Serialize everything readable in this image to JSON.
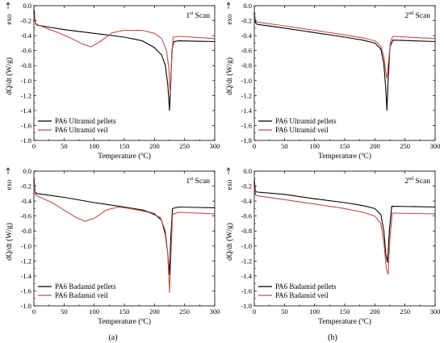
{
  "figure": {
    "labels": [
      "(a)",
      "(b)"
    ]
  },
  "chart_data": [
    {
      "type": "line",
      "panel": "top-left",
      "annotation": {
        "main": "1",
        "sup": "st",
        "rest": " Scan"
      },
      "xlabel": "Temperature (ºC)",
      "ylabel": "dQ/dt (W/g)",
      "exo_label": "exo",
      "xlim": [
        0,
        300
      ],
      "ylim": [
        -1.8,
        0.0
      ],
      "xticks": [
        0,
        50,
        100,
        150,
        200,
        250,
        300
      ],
      "yticks": [
        0.0,
        -0.2,
        -0.4,
        -0.6,
        -0.8,
        -1.0,
        -1.2,
        -1.4,
        -1.6,
        -1.8
      ],
      "legend_position": "bottom-left",
      "grid": false,
      "series": [
        {
          "name": "PA6 Ultramid pellets",
          "color": "#000000",
          "x": [
            0,
            2,
            5,
            20,
            50,
            100,
            150,
            180,
            200,
            212,
            218,
            222,
            225,
            227,
            229,
            232,
            240,
            300
          ],
          "y": [
            -0.05,
            -0.22,
            -0.26,
            -0.28,
            -0.32,
            -0.37,
            -0.42,
            -0.47,
            -0.56,
            -0.66,
            -0.8,
            -1.05,
            -1.4,
            -1.05,
            -0.6,
            -0.48,
            -0.47,
            -0.48
          ]
        },
        {
          "name": "PA6 Ultramid veil",
          "color": "#c0504d",
          "x": [
            0,
            3,
            5,
            20,
            40,
            60,
            80,
            95,
            110,
            130,
            150,
            180,
            200,
            212,
            220,
            224,
            226,
            228,
            231,
            240,
            300
          ],
          "y": [
            -0.1,
            -0.25,
            -0.25,
            -0.3,
            -0.36,
            -0.43,
            -0.51,
            -0.55,
            -0.48,
            -0.36,
            -0.33,
            -0.33,
            -0.37,
            -0.44,
            -0.6,
            -0.85,
            -1.18,
            -0.8,
            -0.42,
            -0.41,
            -0.44
          ]
        }
      ]
    },
    {
      "type": "line",
      "panel": "top-right",
      "annotation": {
        "main": "2",
        "sup": "nd",
        "rest": " Scan"
      },
      "xlabel": "Temperature (ºC)",
      "ylabel": "dQ/dt (W/g)",
      "exo_label": "exo",
      "xlim": [
        0,
        300
      ],
      "ylim": [
        -1.8,
        0.0
      ],
      "xticks": [
        0,
        50,
        100,
        150,
        200,
        250,
        300
      ],
      "yticks": [
        0.0,
        -0.2,
        -0.4,
        -0.6,
        -0.8,
        -1.0,
        -1.2,
        -1.4,
        -1.6,
        -1.8
      ],
      "legend_position": "bottom-left",
      "grid": false,
      "series": [
        {
          "name": "PA6 Ultramid pellets",
          "color": "#000000",
          "x": [
            0,
            2,
            5,
            50,
            100,
            150,
            180,
            200,
            210,
            215,
            218,
            220,
            222,
            225,
            230,
            300
          ],
          "y": [
            -0.1,
            -0.23,
            -0.25,
            -0.3,
            -0.36,
            -0.42,
            -0.46,
            -0.5,
            -0.58,
            -0.78,
            -1.1,
            -1.4,
            -1.0,
            -0.55,
            -0.46,
            -0.48
          ]
        },
        {
          "name": "PA6 Ultramid veil",
          "color": "#c0504d",
          "x": [
            0,
            2,
            5,
            50,
            100,
            150,
            180,
            200,
            210,
            215,
            218,
            220,
            222,
            226,
            230,
            300
          ],
          "y": [
            -0.08,
            -0.2,
            -0.22,
            -0.27,
            -0.33,
            -0.39,
            -0.43,
            -0.47,
            -0.54,
            -0.68,
            -0.88,
            -0.97,
            -0.8,
            -0.48,
            -0.41,
            -0.44
          ]
        }
      ]
    },
    {
      "type": "line",
      "panel": "bottom-left",
      "annotation": {
        "main": "1",
        "sup": "st",
        "rest": " Scan"
      },
      "xlabel": "Temperature (ºC)",
      "ylabel": "dQ/dt (W/g)",
      "exo_label": "exo",
      "xlim": [
        0,
        300
      ],
      "ylim": [
        -1.8,
        0.0
      ],
      "xticks": [
        0,
        50,
        100,
        150,
        200,
        250,
        300
      ],
      "yticks": [
        0.0,
        -0.2,
        -0.4,
        -0.6,
        -0.8,
        -1.0,
        -1.2,
        -1.4,
        -1.6,
        -1.8
      ],
      "legend_position": "bottom-left",
      "grid": false,
      "series": [
        {
          "name": "PA6 Badamid pellets",
          "color": "#000000",
          "x": [
            0,
            2,
            5,
            50,
            100,
            150,
            180,
            200,
            212,
            218,
            222,
            225,
            227,
            230,
            240,
            300
          ],
          "y": [
            -0.1,
            -0.28,
            -0.3,
            -0.35,
            -0.42,
            -0.48,
            -0.52,
            -0.57,
            -0.66,
            -0.85,
            -1.1,
            -1.38,
            -0.9,
            -0.5,
            -0.48,
            -0.49
          ]
        },
        {
          "name": "PA6 Badamid veil",
          "color": "#c0504d",
          "x": [
            0,
            3,
            5,
            30,
            50,
            70,
            85,
            100,
            120,
            140,
            160,
            190,
            210,
            218,
            222,
            225,
            227,
            230,
            240,
            300
          ],
          "y": [
            -0.15,
            -0.32,
            -0.33,
            -0.42,
            -0.52,
            -0.62,
            -0.67,
            -0.63,
            -0.52,
            -0.48,
            -0.5,
            -0.55,
            -0.62,
            -0.8,
            -1.1,
            -1.62,
            -1.2,
            -0.58,
            -0.55,
            -0.57
          ]
        }
      ]
    },
    {
      "type": "line",
      "panel": "bottom-right",
      "annotation": {
        "main": "2",
        "sup": "nd",
        "rest": " Scan"
      },
      "xlabel": "Temperature (ºC)",
      "ylabel": "dQ/dt (W/g)",
      "exo_label": "exo",
      "xlim": [
        0,
        300
      ],
      "ylim": [
        -1.8,
        0.0
      ],
      "xticks": [
        0,
        50,
        100,
        150,
        200,
        250,
        300
      ],
      "yticks": [
        0.0,
        -0.2,
        -0.4,
        -0.6,
        -0.8,
        -1.0,
        -1.2,
        -1.4,
        -1.6,
        -1.8
      ],
      "legend_position": "bottom-left",
      "grid": false,
      "series": [
        {
          "name": "PA6 Badamid pellets",
          "color": "#000000",
          "x": [
            0,
            2,
            5,
            50,
            100,
            150,
            180,
            200,
            210,
            215,
            218,
            221,
            224,
            228,
            300
          ],
          "y": [
            -0.12,
            -0.27,
            -0.28,
            -0.31,
            -0.37,
            -0.42,
            -0.46,
            -0.5,
            -0.58,
            -0.8,
            -1.1,
            -1.22,
            -0.8,
            -0.47,
            -0.48
          ]
        },
        {
          "name": "PA6 Badamid veil",
          "color": "#c0504d",
          "x": [
            0,
            2,
            5,
            50,
            100,
            150,
            180,
            200,
            210,
            215,
            219,
            222,
            225,
            229,
            300
          ],
          "y": [
            -0.15,
            -0.32,
            -0.33,
            -0.38,
            -0.44,
            -0.5,
            -0.55,
            -0.6,
            -0.7,
            -0.95,
            -1.3,
            -1.38,
            -0.9,
            -0.56,
            -0.57
          ]
        }
      ]
    }
  ]
}
